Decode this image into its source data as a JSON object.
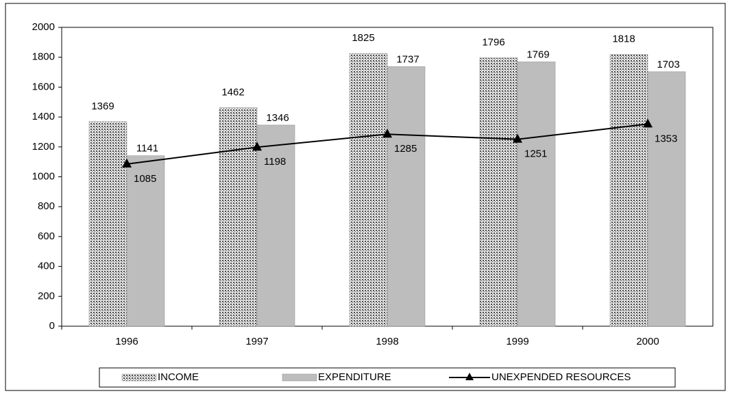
{
  "chart_data": {
    "type": "bar",
    "categories": [
      "1996",
      "1997",
      "1998",
      "1999",
      "2000"
    ],
    "series": [
      {
        "name": "INCOME",
        "color": "#4a4a4a",
        "values": [
          1369,
          1462,
          1825,
          1796,
          1818
        ]
      },
      {
        "name": "EXPENDITURE",
        "color": "#bdbdbd",
        "values": [
          1141,
          1346,
          1737,
          1769,
          1703
        ]
      },
      {
        "name": "UNEXPENDED RESOURCES",
        "type": "line",
        "color": "#000000",
        "values": [
          1085,
          1198,
          1285,
          1251,
          1353
        ]
      }
    ],
    "ylim": [
      0,
      2000
    ],
    "yticks": [
      0,
      200,
      400,
      600,
      800,
      1000,
      1200,
      1400,
      1600,
      1800,
      2000
    ],
    "grid": false,
    "legend": "bottom"
  }
}
